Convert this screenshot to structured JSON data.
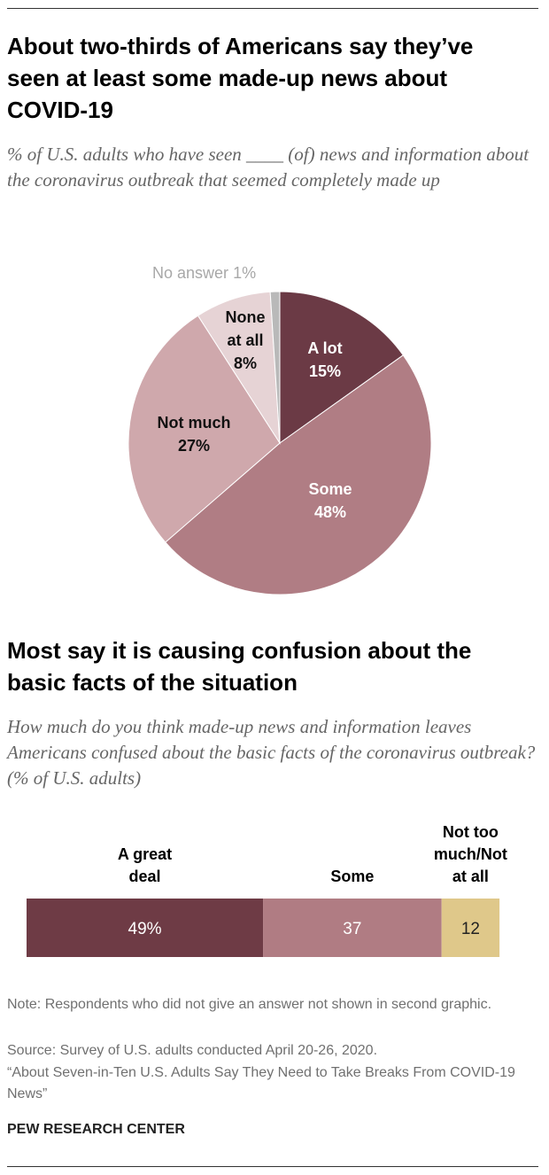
{
  "chart_data": [
    {
      "type": "pie",
      "title": "About two-thirds of Americans say they’ve seen at least some made-up news about COVID-19",
      "subtitle": "% of U.S. adults who have seen ____ (of) news and information about the coronavirus outbreak that seemed completely made up",
      "categories": [
        "A lot",
        "Some",
        "Not much",
        "None at all",
        "No answer"
      ],
      "values": [
        15,
        48,
        27,
        8,
        1
      ],
      "value_labels": [
        "15%",
        "48%",
        "27%",
        "8%",
        "1%"
      ],
      "colors": [
        "#6b3a45",
        "#b07d84",
        "#cfa8ac",
        "#e6d3d5",
        "#b9b9b9"
      ]
    },
    {
      "type": "bar",
      "orientation": "horizontal",
      "stacked": true,
      "title": "Most say it is causing confusion about the basic facts of the situation",
      "subtitle": "How much do you think made-up news and information leaves Americans confused about the basic facts of the coronavirus outbreak? (% of U.S. adults)",
      "categories": [
        null
      ],
      "series": [
        {
          "name": "A great deal",
          "color": "#6e3b45",
          "values": [
            49
          ],
          "value_labels": [
            "49%"
          ]
        },
        {
          "name": "Some",
          "color": "#b07c83",
          "values": [
            37
          ]
        },
        {
          "name": "Not too much/Not at all",
          "color": "#dfc88a",
          "values": [
            12
          ]
        }
      ]
    }
  ],
  "note": "Note: Respondents who did not give an answer not shown in second graphic.",
  "source": "Source: Survey of U.S. adults conducted April 20-26, 2020.",
  "citation": "“About Seven-in-Ten U.S. Adults Say They Need to Take Breaks From COVID-19 News”",
  "credit": "PEW RESEARCH CENTER"
}
